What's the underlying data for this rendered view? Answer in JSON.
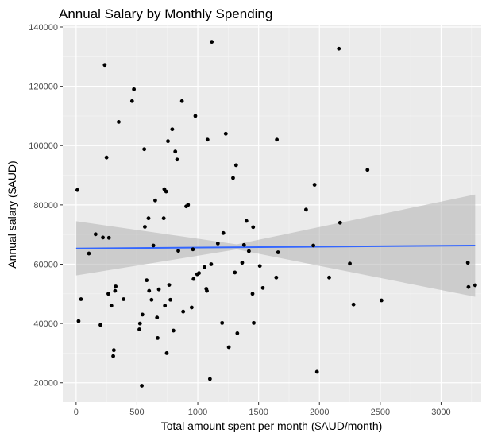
{
  "chart_data": {
    "type": "scatter",
    "title": "Annual Salary by Monthly Spending",
    "xlabel": "Total amount spent per month ($AUD/month)",
    "ylabel": "Annual salary ($AUD)",
    "xlim": [
      -110,
      3330
    ],
    "ylim": [
      13500,
      140800
    ],
    "x_ticks": [
      0,
      500,
      1000,
      1500,
      2000,
      2500,
      3000
    ],
    "y_ticks": [
      20000,
      40000,
      60000,
      80000,
      100000,
      120000,
      140000
    ],
    "grid": true,
    "legend": "none",
    "colors": {
      "panel": "#ebebeb",
      "grid_major": "#ffffff",
      "grid_minor": "#f5f5f5",
      "point": "#000000",
      "trend": "#3366ff",
      "ribbon": "#b3b3b3"
    },
    "points": [
      [
        10,
        85000
      ],
      [
        20,
        40800
      ],
      [
        40,
        48200
      ],
      [
        105,
        63600
      ],
      [
        160,
        70100
      ],
      [
        200,
        39500
      ],
      [
        220,
        69000
      ],
      [
        235,
        127200
      ],
      [
        250,
        96000
      ],
      [
        265,
        50000
      ],
      [
        270,
        68900
      ],
      [
        290,
        46000
      ],
      [
        305,
        29000
      ],
      [
        310,
        31000
      ],
      [
        320,
        51000
      ],
      [
        325,
        52500
      ],
      [
        350,
        108000
      ],
      [
        390,
        48200
      ],
      [
        460,
        115000
      ],
      [
        475,
        119000
      ],
      [
        520,
        38000
      ],
      [
        525,
        40000
      ],
      [
        540,
        19000
      ],
      [
        545,
        43000
      ],
      [
        560,
        98800
      ],
      [
        565,
        72600
      ],
      [
        580,
        54600
      ],
      [
        595,
        75500
      ],
      [
        600,
        51000
      ],
      [
        620,
        48000
      ],
      [
        635,
        66300
      ],
      [
        650,
        81500
      ],
      [
        665,
        42000
      ],
      [
        670,
        35100
      ],
      [
        680,
        51500
      ],
      [
        720,
        75500
      ],
      [
        725,
        85300
      ],
      [
        730,
        46000
      ],
      [
        740,
        84500
      ],
      [
        745,
        30000
      ],
      [
        755,
        101500
      ],
      [
        765,
        53000
      ],
      [
        775,
        48000
      ],
      [
        790,
        105500
      ],
      [
        800,
        37600
      ],
      [
        815,
        98000
      ],
      [
        830,
        95300
      ],
      [
        840,
        64500
      ],
      [
        870,
        115000
      ],
      [
        880,
        44000
      ],
      [
        905,
        79500
      ],
      [
        920,
        80000
      ],
      [
        950,
        45400
      ],
      [
        960,
        65000
      ],
      [
        965,
        55000
      ],
      [
        980,
        110000
      ],
      [
        995,
        56600
      ],
      [
        1010,
        57000
      ],
      [
        1055,
        59000
      ],
      [
        1070,
        51700
      ],
      [
        1075,
        51000
      ],
      [
        1080,
        102000
      ],
      [
        1100,
        21300
      ],
      [
        1110,
        60000
      ],
      [
        1115,
        135000
      ],
      [
        1165,
        67000
      ],
      [
        1200,
        40200
      ],
      [
        1210,
        70500
      ],
      [
        1230,
        104000
      ],
      [
        1255,
        32000
      ],
      [
        1290,
        89100
      ],
      [
        1305,
        57200
      ],
      [
        1315,
        93400
      ],
      [
        1325,
        36700
      ],
      [
        1365,
        60500
      ],
      [
        1380,
        66500
      ],
      [
        1400,
        74600
      ],
      [
        1420,
        64400
      ],
      [
        1450,
        50000
      ],
      [
        1455,
        72500
      ],
      [
        1460,
        40200
      ],
      [
        1510,
        59400
      ],
      [
        1535,
        52000
      ],
      [
        1645,
        55500
      ],
      [
        1650,
        102000
      ],
      [
        1660,
        64000
      ],
      [
        1890,
        78400
      ],
      [
        1950,
        66300
      ],
      [
        1960,
        86800
      ],
      [
        1980,
        23700
      ],
      [
        2080,
        55500
      ],
      [
        2160,
        132700
      ],
      [
        2170,
        74000
      ],
      [
        2250,
        60200
      ],
      [
        2280,
        46400
      ],
      [
        2395,
        91800
      ],
      [
        2510,
        47800
      ],
      [
        3220,
        60500
      ],
      [
        3225,
        52300
      ],
      [
        3280,
        52900
      ]
    ],
    "trend_line": [
      [
        0,
        65300
      ],
      [
        3280,
        66300
      ]
    ],
    "ribbon_upper": [
      [
        0,
        74500
      ],
      [
        1320,
        66700
      ],
      [
        3280,
        83500
      ]
    ],
    "ribbon_lower": [
      [
        0,
        56200
      ],
      [
        1320,
        65000
      ],
      [
        3280,
        49000
      ]
    ]
  }
}
